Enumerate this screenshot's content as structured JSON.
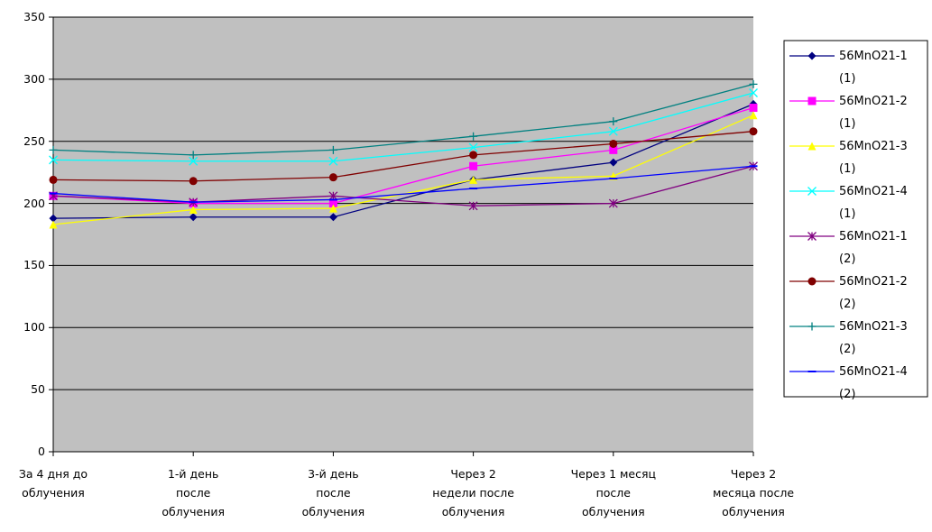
{
  "chart_data": {
    "type": "line",
    "categories": [
      "За 4 дня до\nоблучения",
      "1-й день\nпосле\nоблучения",
      "3-й день\nпосле\nоблучения",
      "Через 2\nнедели после\nоблучения",
      "Через 1 месяц\nпосле\nоблучения",
      "Через 2\nмесяца после\nоблучения"
    ],
    "series": [
      {
        "name": "56MnO21-1\n(1)",
        "color": "#000080",
        "marker": "diamond",
        "values": [
          188,
          189,
          189,
          219,
          233,
          280
        ]
      },
      {
        "name": "56MnO21-2\n(1)",
        "color": "#ff00ff",
        "marker": "square",
        "values": [
          206,
          200,
          200,
          230,
          243,
          277
        ]
      },
      {
        "name": "56MnO21-3\n(1)",
        "color": "#ffff00",
        "marker": "triangle",
        "values": [
          183,
          195,
          196,
          219,
          222,
          271
        ]
      },
      {
        "name": "56MnO21-4\n(1)",
        "color": "#00ffff",
        "marker": "x",
        "values": [
          235,
          234,
          234,
          245,
          258,
          289
        ]
      },
      {
        "name": "56MnO21-1\n(2)",
        "color": "#800080",
        "marker": "star",
        "values": [
          206,
          201,
          206,
          198,
          200,
          230
        ]
      },
      {
        "name": "56MnO21-2\n(2)",
        "color": "#800000",
        "marker": "circle",
        "values": [
          219,
          218,
          221,
          239,
          248,
          258
        ]
      },
      {
        "name": "56MnO21-3\n(2)",
        "color": "#008080",
        "marker": "plus",
        "values": [
          243,
          239,
          243,
          254,
          266,
          296
        ]
      },
      {
        "name": "56MnO21-4\n(2)",
        "color": "#0000ff",
        "marker": "dash",
        "values": [
          208,
          201,
          203,
          212,
          220,
          230
        ]
      }
    ],
    "ylim": [
      0,
      350
    ],
    "yticks": [
      0,
      50,
      100,
      150,
      200,
      250,
      300,
      350
    ],
    "grid": true,
    "legend": "right",
    "plot_background": "#c0c0c0"
  }
}
